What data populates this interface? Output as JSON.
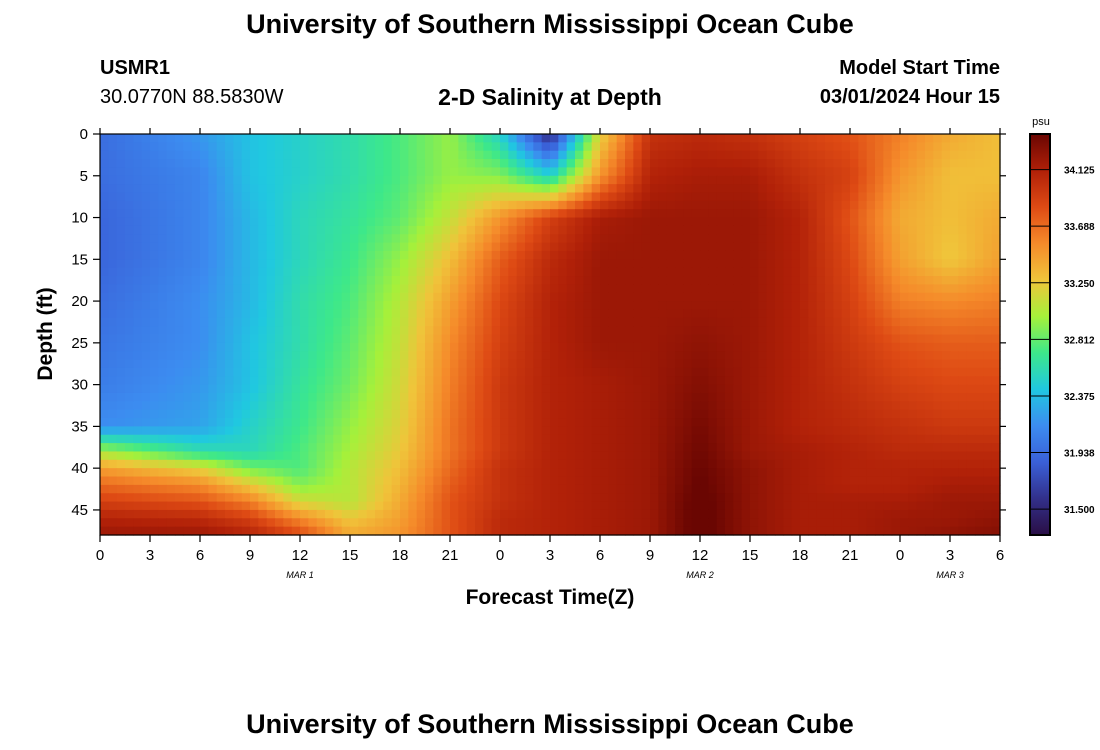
{
  "chart_data": {
    "type": "heatmap",
    "title": "University of Southern Mississippi Ocean Cube",
    "subtitle": "2-D Salinity at Depth",
    "station": {
      "name": "USMR1",
      "coords": "30.0770N  88.5830W"
    },
    "model_start": {
      "label": "Model Start Time",
      "value": "03/01/2024 Hour 15"
    },
    "xlabel": "Forecast Time(Z)",
    "ylabel": "Depth (ft)",
    "x_range": [
      0,
      54
    ],
    "y_range": [
      0,
      48
    ],
    "x_tick_values": [
      0,
      3,
      6,
      9,
      12,
      15,
      18,
      21,
      24,
      27,
      30,
      33,
      36,
      39,
      42,
      45,
      48,
      51,
      54
    ],
    "x_tick_labels": [
      "0",
      "3",
      "6",
      "9",
      "12",
      "15",
      "18",
      "21",
      "0",
      "3",
      "6",
      "9",
      "12",
      "15",
      "18",
      "21",
      "0",
      "3",
      "6"
    ],
    "date_labels": [
      {
        "text": "MAR 1",
        "x": 12
      },
      {
        "text": "MAR 2",
        "x": 36
      },
      {
        "text": "MAR 3",
        "x": 51
      }
    ],
    "y_tick_values": [
      0,
      5,
      10,
      15,
      20,
      25,
      30,
      35,
      40,
      45
    ],
    "y_tick_labels": [
      "0",
      "5",
      "10",
      "15",
      "20",
      "25",
      "30",
      "35",
      "40",
      "45"
    ],
    "colorbar": {
      "unit": "psu",
      "min": 31.3,
      "max": 34.4,
      "tick_values": [
        34.125,
        33.688,
        33.25,
        32.812,
        32.375,
        31.938,
        31.5
      ],
      "tick_labels": [
        "34.125",
        "33.688",
        "33.250",
        "32.812",
        "32.375",
        "31.938",
        "31.500"
      ]
    },
    "grid": {
      "x": [
        0,
        6,
        9,
        12,
        15,
        18,
        21,
        24,
        27,
        30,
        33,
        36,
        39,
        42,
        45,
        48,
        51,
        54
      ],
      "y": [
        0,
        5,
        10,
        15,
        20,
        25,
        30,
        35,
        38,
        40,
        42,
        44,
        46,
        48
      ],
      "values": [
        [
          31.95,
          32.2,
          32.4,
          32.5,
          32.6,
          32.75,
          32.95,
          32.5,
          31.5,
          33.2,
          34.0,
          34.05,
          34.0,
          33.9,
          33.8,
          33.6,
          33.4,
          33.3
        ],
        [
          31.95,
          32.1,
          32.4,
          32.5,
          32.6,
          32.75,
          32.95,
          32.9,
          32.5,
          33.5,
          34.1,
          34.15,
          34.15,
          34.0,
          33.9,
          33.5,
          33.3,
          33.3
        ],
        [
          31.9,
          32.1,
          32.35,
          32.55,
          32.65,
          32.8,
          33.1,
          33.5,
          33.9,
          34.15,
          34.2,
          34.2,
          34.2,
          34.1,
          33.8,
          33.4,
          33.3,
          33.4
        ],
        [
          31.9,
          32.1,
          32.35,
          32.55,
          32.7,
          32.95,
          33.3,
          33.75,
          34.05,
          34.2,
          34.2,
          34.2,
          34.2,
          34.1,
          33.85,
          33.45,
          33.25,
          33.45
        ],
        [
          31.95,
          32.15,
          32.35,
          32.6,
          32.75,
          33.05,
          33.45,
          33.85,
          34.1,
          34.2,
          34.2,
          34.2,
          34.2,
          34.1,
          33.9,
          33.6,
          33.55,
          33.6
        ],
        [
          32.0,
          32.15,
          32.4,
          32.6,
          32.8,
          33.1,
          33.55,
          33.9,
          34.1,
          34.2,
          34.2,
          34.25,
          34.2,
          34.1,
          33.95,
          33.8,
          33.75,
          33.75
        ],
        [
          32.05,
          32.2,
          32.4,
          32.65,
          32.85,
          33.15,
          33.6,
          33.95,
          34.1,
          34.15,
          34.2,
          34.3,
          34.2,
          34.1,
          34.0,
          33.9,
          33.85,
          33.85
        ],
        [
          32.15,
          32.25,
          32.5,
          32.7,
          32.95,
          33.2,
          33.65,
          33.95,
          34.1,
          34.15,
          34.2,
          34.35,
          34.2,
          34.1,
          34.05,
          34.0,
          33.95,
          33.95
        ],
        [
          33.0,
          32.6,
          32.55,
          32.75,
          33.0,
          33.25,
          33.65,
          33.95,
          34.1,
          34.15,
          34.2,
          34.38,
          34.2,
          34.15,
          34.1,
          34.05,
          34.05,
          34.05
        ],
        [
          33.45,
          33.2,
          32.85,
          32.75,
          33.05,
          33.3,
          33.7,
          34.0,
          34.1,
          34.15,
          34.2,
          34.4,
          34.25,
          34.15,
          34.1,
          34.1,
          34.1,
          34.1
        ],
        [
          33.7,
          33.55,
          33.25,
          32.9,
          33.05,
          33.35,
          33.75,
          34.0,
          34.1,
          34.15,
          34.2,
          34.42,
          34.25,
          34.15,
          34.1,
          34.1,
          34.15,
          34.15
        ],
        [
          33.9,
          33.8,
          33.6,
          33.15,
          33.05,
          33.4,
          33.8,
          34.0,
          34.1,
          34.15,
          34.2,
          34.45,
          34.25,
          34.15,
          34.15,
          34.15,
          34.2,
          34.2
        ],
        [
          34.1,
          34.05,
          33.9,
          33.55,
          33.25,
          33.45,
          33.8,
          34.05,
          34.1,
          34.15,
          34.2,
          34.45,
          34.25,
          34.15,
          34.15,
          34.2,
          34.2,
          34.25
        ],
        [
          34.2,
          34.2,
          34.1,
          33.85,
          33.4,
          33.5,
          33.8,
          34.05,
          34.1,
          34.15,
          34.2,
          34.45,
          34.25,
          34.15,
          34.15,
          34.2,
          34.25,
          34.3
        ]
      ]
    }
  },
  "footer": {
    "title": "University of Southern Mississippi Ocean Cube"
  },
  "colors": {
    "background": "#ffffff",
    "axis": "#000000",
    "colormap": [
      "#2a0e45",
      "#32308a",
      "#3a60d8",
      "#3c8cf0",
      "#20c8e0",
      "#3de88a",
      "#a6f03a",
      "#f0c43a",
      "#f58a2a",
      "#de4a14",
      "#b02008",
      "#6a0602"
    ]
  }
}
